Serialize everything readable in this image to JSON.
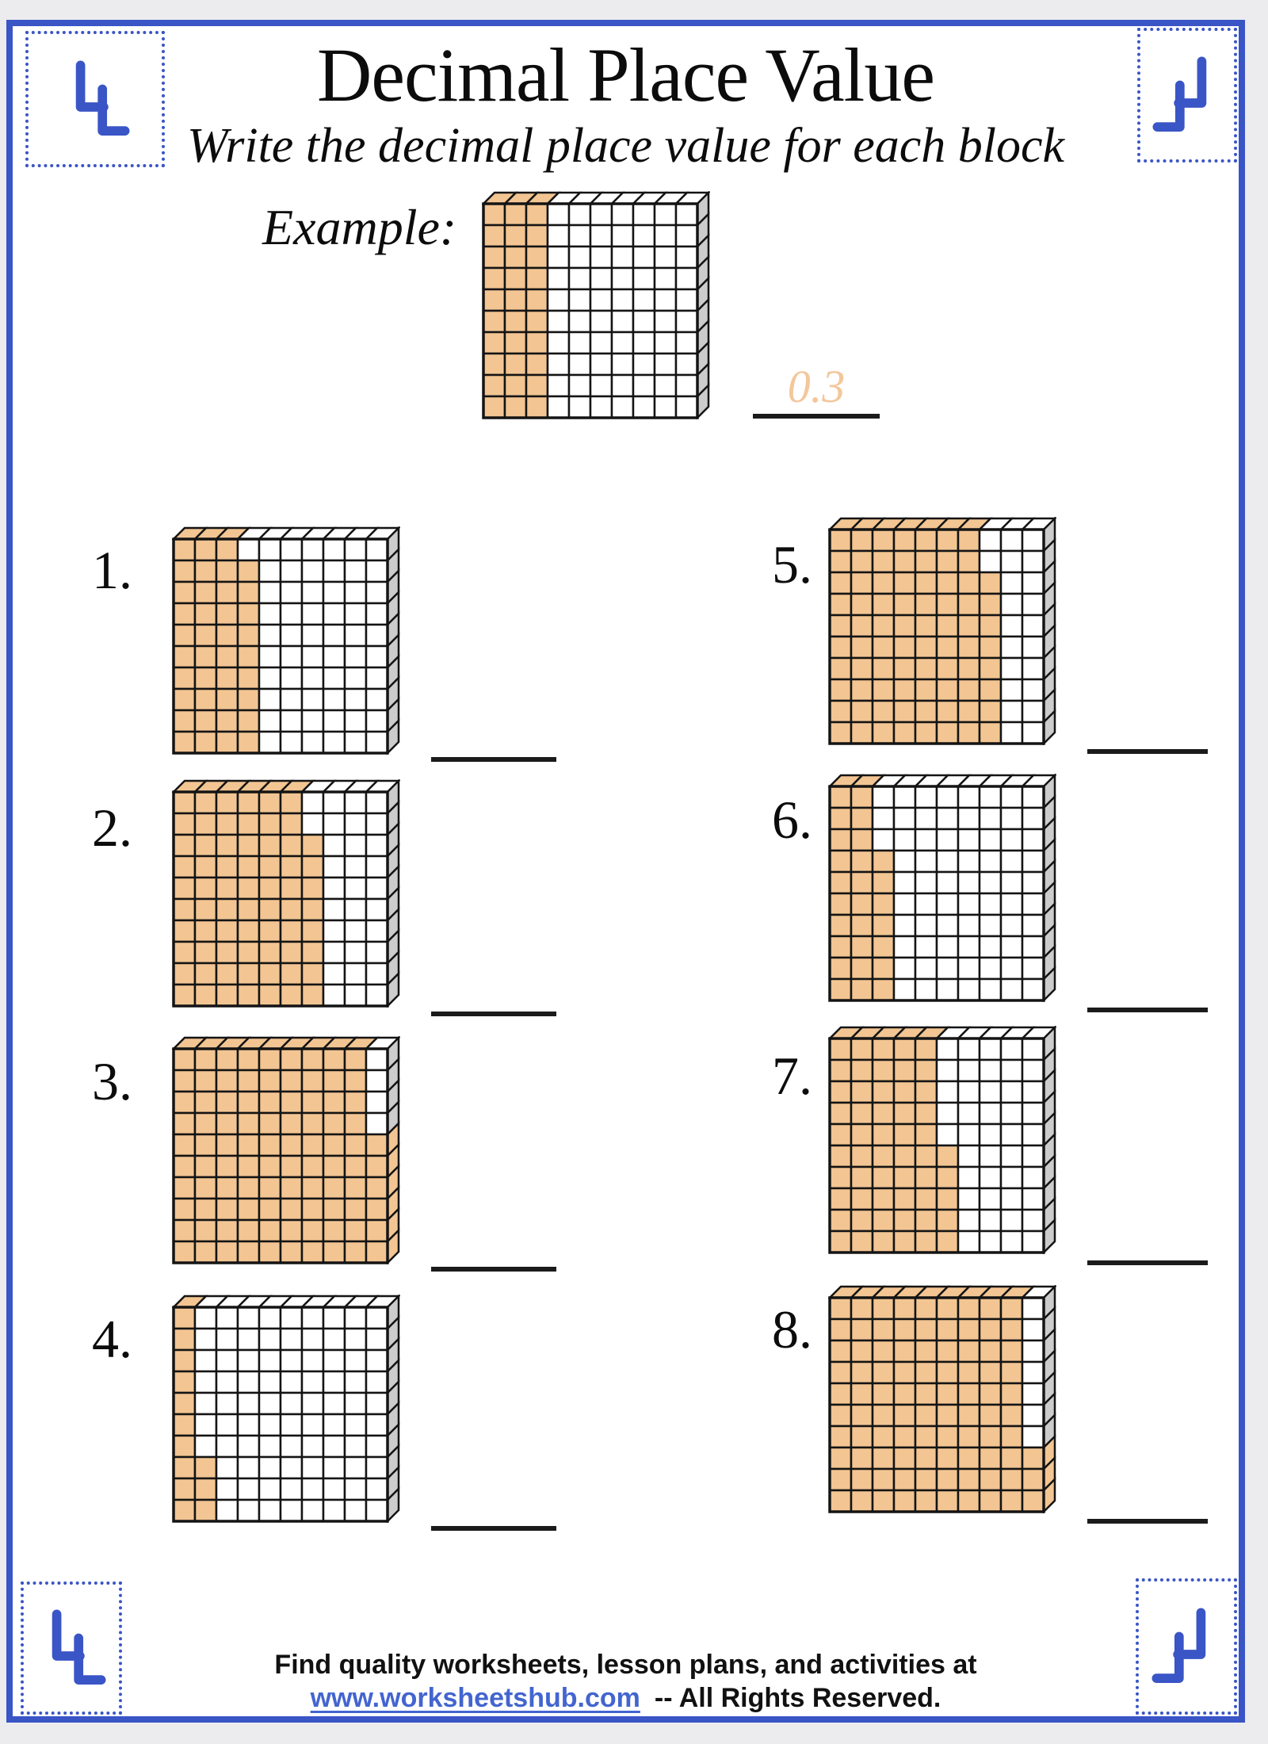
{
  "title": "Decimal Place Value",
  "subtitle": "Write the decimal place value for each block",
  "example": {
    "label": "Example:",
    "answer": "0.3",
    "grid": {
      "rows": 10,
      "cols": 10,
      "full_columns": 3,
      "partial_column_cells": 0,
      "shaded_cells": 30,
      "depicted_decimal": "0.3"
    }
  },
  "problems": [
    {
      "number": "1.",
      "grid": {
        "rows": 10,
        "cols": 10,
        "full_columns": 3,
        "partial_column_cells": 9,
        "shaded_cells": 39,
        "depicted_decimal": "0.39"
      }
    },
    {
      "number": "2.",
      "grid": {
        "rows": 10,
        "cols": 10,
        "full_columns": 6,
        "partial_column_cells": 8,
        "shaded_cells": 68,
        "depicted_decimal": "0.68"
      }
    },
    {
      "number": "3.",
      "grid": {
        "rows": 10,
        "cols": 10,
        "full_columns": 9,
        "partial_column_cells": 6,
        "shaded_cells": 96,
        "depicted_decimal": "0.96"
      }
    },
    {
      "number": "4.",
      "grid": {
        "rows": 10,
        "cols": 10,
        "full_columns": 1,
        "partial_column_cells": 3,
        "shaded_cells": 13,
        "depicted_decimal": "0.13"
      }
    },
    {
      "number": "5.",
      "grid": {
        "rows": 10,
        "cols": 10,
        "full_columns": 7,
        "partial_column_cells": 8,
        "shaded_cells": 78,
        "depicted_decimal": "0.78"
      }
    },
    {
      "number": "6.",
      "grid": {
        "rows": 10,
        "cols": 10,
        "full_columns": 2,
        "partial_column_cells": 7,
        "shaded_cells": 27,
        "depicted_decimal": "0.27"
      }
    },
    {
      "number": "7.",
      "grid": {
        "rows": 10,
        "cols": 10,
        "full_columns": 5,
        "partial_column_cells": 5,
        "shaded_cells": 55,
        "depicted_decimal": "0.55"
      }
    },
    {
      "number": "8.",
      "grid": {
        "rows": 10,
        "cols": 10,
        "full_columns": 9,
        "partial_column_cells": 3,
        "shaded_cells": 93,
        "depicted_decimal": "0.93"
      }
    }
  ],
  "footer": {
    "line1": "Find quality worksheets, lesson plans, and activities at",
    "url": "www.worksheetshub.com",
    "suffix": "-- All Rights Reserved."
  },
  "colors": {
    "accent_blue": "#3a55c6",
    "link_blue": "#4365cf",
    "shaded_fill": "#f2c592",
    "side_face": "#cccccc",
    "grid_line": "#141414",
    "line_black": "#1b1b1b",
    "answer_peach": "#f3c79b"
  }
}
